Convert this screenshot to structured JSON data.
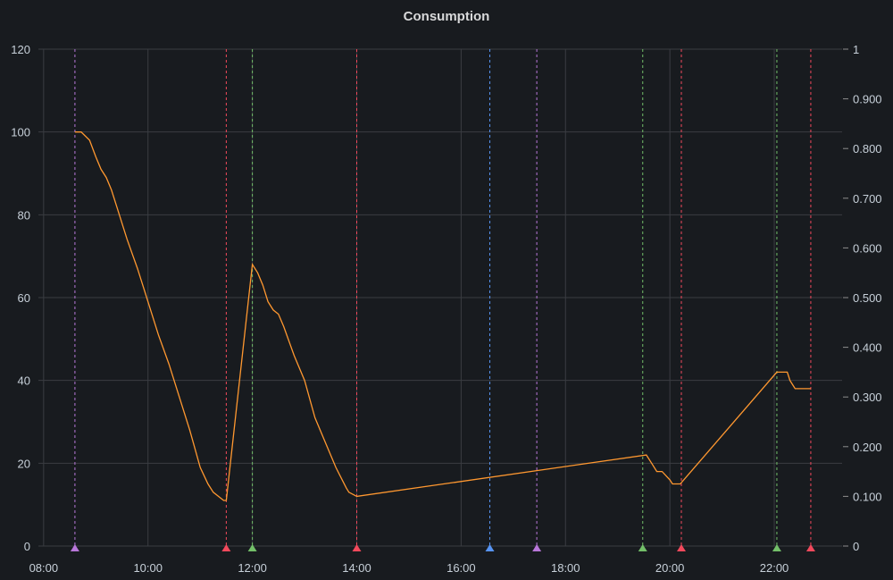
{
  "panel": {
    "title": "Consumption"
  },
  "colors": {
    "background": "#181b1f",
    "grid": "#3a3d42",
    "series": "#ff9830",
    "text": "#c7d0d9"
  },
  "chart_data": {
    "type": "line",
    "title": "Consumption",
    "x_unit": "hours",
    "xlim": [
      7.9,
      23.3
    ],
    "ylim": [
      0,
      120
    ],
    "y2lim": [
      0,
      1
    ],
    "grid": true,
    "x_ticks": [
      8,
      10,
      12,
      14,
      16,
      18,
      20,
      22
    ],
    "x_tick_labels": [
      "08:00",
      "10:00",
      "12:00",
      "14:00",
      "16:00",
      "18:00",
      "20:00",
      "22:00"
    ],
    "y_ticks": [
      0,
      20,
      40,
      60,
      80,
      100,
      120
    ],
    "y_tick_labels": [
      "0",
      "20",
      "40",
      "60",
      "80",
      "100",
      "120"
    ],
    "y2_ticks": [
      0,
      0.1,
      0.2,
      0.3,
      0.4,
      0.5,
      0.6,
      0.7,
      0.8,
      0.9,
      1
    ],
    "y2_tick_labels": [
      "0",
      "0.100",
      "0.200",
      "0.300",
      "0.400",
      "0.500",
      "0.600",
      "0.700",
      "0.800",
      "0.900",
      "1"
    ],
    "series": [
      {
        "color": "#ff9830",
        "x": [
          8.6,
          8.72,
          8.88,
          9.0,
          9.1,
          9.2,
          9.3,
          9.4,
          9.6,
          9.8,
          10.0,
          10.2,
          10.4,
          10.6,
          10.8,
          11.0,
          11.15,
          11.25,
          11.35,
          11.45,
          11.5,
          12.0,
          12.1,
          12.2,
          12.3,
          12.4,
          12.5,
          12.6,
          12.8,
          13.0,
          13.2,
          13.4,
          13.6,
          13.8,
          13.85,
          14.0,
          19.55,
          19.65,
          19.75,
          19.85,
          20.0,
          20.05,
          20.2,
          22.05,
          22.15,
          22.25,
          22.3,
          22.4,
          22.5,
          22.7
        ],
        "y": [
          100,
          100,
          98,
          94,
          91,
          89,
          86,
          82,
          74,
          67,
          59,
          51,
          44,
          36,
          28,
          19,
          15,
          13,
          12,
          11,
          11,
          68,
          66,
          63,
          59,
          57,
          56,
          53,
          46,
          40,
          31,
          25,
          19,
          14,
          13,
          12,
          22,
          20,
          18,
          18,
          16,
          15,
          15,
          42,
          42,
          42,
          40,
          38,
          38,
          38
        ]
      }
    ],
    "annotations": [
      {
        "x": 8.6,
        "color": "#b877d9"
      },
      {
        "x": 11.5,
        "color": "#f2495c"
      },
      {
        "x": 12.0,
        "color": "#73bf69"
      },
      {
        "x": 14.0,
        "color": "#f2495c"
      },
      {
        "x": 16.55,
        "color": "#5794f2"
      },
      {
        "x": 17.45,
        "color": "#b877d9"
      },
      {
        "x": 19.48,
        "color": "#73bf69"
      },
      {
        "x": 20.22,
        "color": "#f2495c"
      },
      {
        "x": 22.05,
        "color": "#73bf69"
      },
      {
        "x": 22.7,
        "color": "#f2495c"
      }
    ]
  }
}
